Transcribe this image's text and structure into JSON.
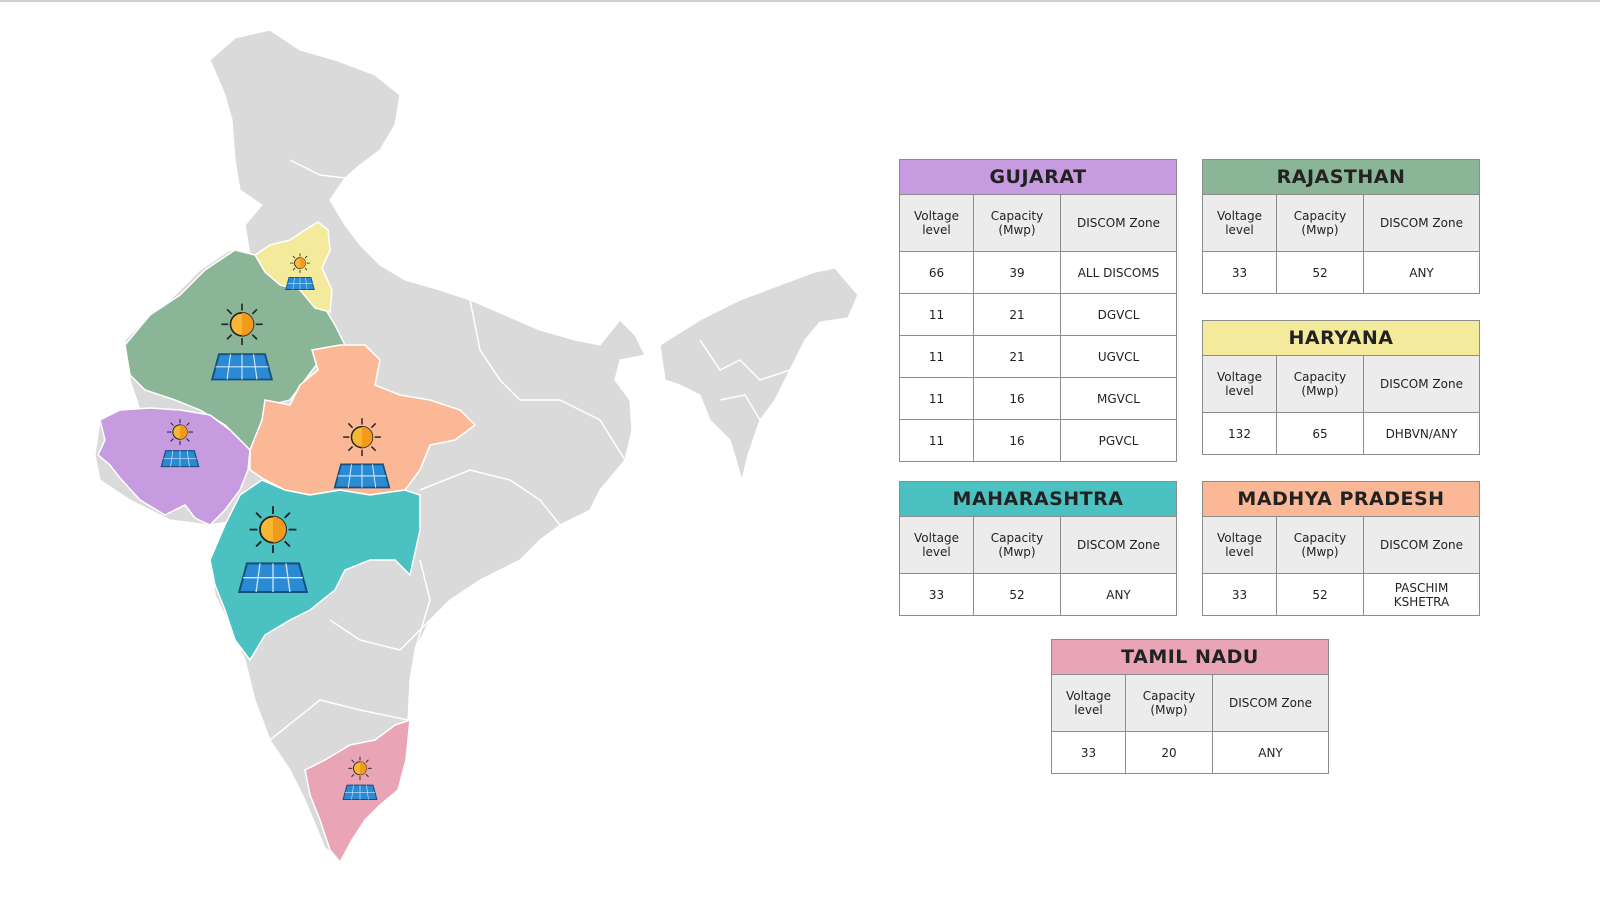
{
  "colors": {
    "land": "#dadada",
    "border": "#ffffff",
    "gujarat": "#c79be0",
    "rajasthan": "#8ab597",
    "haryana": "#f3ea9c",
    "madhya_pradesh": "#fbb896",
    "maharashtra": "#4cc1c1",
    "tamil_nadu": "#e9a4b6",
    "sun": "#f7b732",
    "panel": "#2a8ad4"
  },
  "map": {
    "icons": [
      "sun-panel-icon"
    ]
  },
  "cards": {
    "gujarat": {
      "title": "GUJARAT",
      "headers": [
        "Voltage level",
        "Capacity (Mwp)",
        "DISCOM Zone"
      ],
      "rows": [
        [
          "66",
          "39",
          "ALL DISCOMS"
        ],
        [
          "11",
          "21",
          "DGVCL"
        ],
        [
          "11",
          "21",
          "UGVCL"
        ],
        [
          "11",
          "16",
          "MGVCL"
        ],
        [
          "11",
          "16",
          "PGVCL"
        ]
      ]
    },
    "rajasthan": {
      "title": "RAJASTHAN",
      "headers": [
        "Voltage level",
        "Capacity (Mwp)",
        "DISCOM Zone"
      ],
      "rows": [
        [
          "33",
          "52",
          "ANY"
        ]
      ]
    },
    "haryana": {
      "title": "HARYANA",
      "headers": [
        "Voltage level",
        "Capacity (Mwp)",
        "DISCOM Zone"
      ],
      "rows": [
        [
          "132",
          "65",
          "DHBVN/ANY"
        ]
      ]
    },
    "maharashtra": {
      "title": "MAHARASHTRA",
      "headers": [
        "Voltage level",
        "Capacity (Mwp)",
        "DISCOM Zone"
      ],
      "rows": [
        [
          "33",
          "52",
          "ANY"
        ]
      ]
    },
    "madhya_pradesh": {
      "title": "MADHYA PRADESH",
      "headers": [
        "Voltage level",
        "Capacity (Mwp)",
        "DISCOM Zone"
      ],
      "rows": [
        [
          "33",
          "52",
          "PASCHIM KSHETRA"
        ]
      ]
    },
    "tamil_nadu": {
      "title": "TAMIL NADU",
      "headers": [
        "Voltage level",
        "Capacity (Mwp)",
        "DISCOM Zone"
      ],
      "rows": [
        [
          "33",
          "20",
          "ANY"
        ]
      ]
    }
  }
}
